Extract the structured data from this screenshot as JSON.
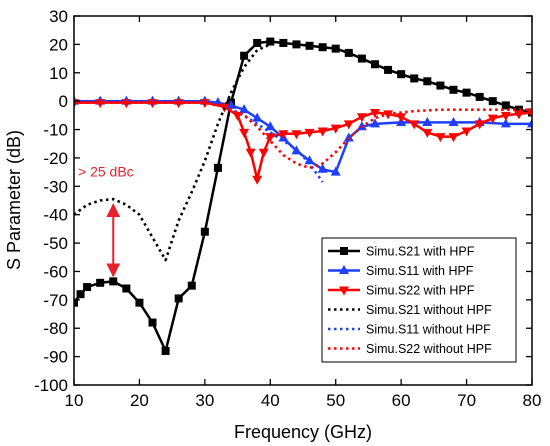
{
  "chart_data": {
    "type": "line",
    "title": "",
    "xlabel": "Frequency (GHz)",
    "ylabel": "S Parameter (dB)",
    "xlim": [
      10,
      80
    ],
    "ylim": [
      -100,
      30
    ],
    "x_ticks": [
      10,
      20,
      30,
      40,
      50,
      60,
      70,
      80
    ],
    "y_ticks": [
      30,
      20,
      10,
      0,
      -10,
      -20,
      -30,
      -40,
      -50,
      -60,
      -70,
      -80,
      -90,
      -100
    ],
    "grid": false,
    "legend_position": "lower-right",
    "series": [
      {
        "name": "Simu.S21 with HPF",
        "color": "#000000",
        "style": "solid",
        "marker": "square",
        "points": [
          [
            10,
            -71
          ],
          [
            11,
            -68
          ],
          [
            12,
            -65.5
          ],
          [
            14,
            -64
          ],
          [
            16,
            -63.5
          ],
          [
            18,
            -66
          ],
          [
            20,
            -71
          ],
          [
            22,
            -78
          ],
          [
            24,
            -88
          ],
          [
            26,
            -69.5
          ],
          [
            28,
            -65
          ],
          [
            30,
            -46
          ],
          [
            32,
            -23.5
          ],
          [
            34,
            -0.5
          ],
          [
            36,
            16
          ],
          [
            38,
            20.5
          ],
          [
            40,
            21
          ],
          [
            42,
            20.5
          ],
          [
            44,
            20
          ],
          [
            46,
            19.5
          ],
          [
            48,
            19
          ],
          [
            50,
            18.5
          ],
          [
            52,
            17
          ],
          [
            54,
            15
          ],
          [
            56,
            13
          ],
          [
            58,
            11
          ],
          [
            60,
            9.5
          ],
          [
            62,
            8
          ],
          [
            64,
            7
          ],
          [
            66,
            5.5
          ],
          [
            68,
            4
          ],
          [
            70,
            3
          ],
          [
            72,
            1.5
          ],
          [
            74,
            0
          ],
          [
            76,
            -1.5
          ],
          [
            78,
            -3
          ],
          [
            80,
            -4
          ]
        ]
      },
      {
        "name": "Simu.S11 with HPF",
        "color": "#1f3fff",
        "style": "solid",
        "marker": "triangle-up",
        "points": [
          [
            10,
            0
          ],
          [
            14,
            0
          ],
          [
            18,
            0
          ],
          [
            22,
            0
          ],
          [
            26,
            0
          ],
          [
            30,
            0
          ],
          [
            32,
            -0.5
          ],
          [
            34,
            -1.5
          ],
          [
            36,
            -3
          ],
          [
            38,
            -6
          ],
          [
            40,
            -9
          ],
          [
            42,
            -13
          ],
          [
            44,
            -17.5
          ],
          [
            46,
            -21
          ],
          [
            48,
            -24
          ],
          [
            50,
            -25
          ],
          [
            52,
            -13
          ],
          [
            54,
            -9
          ],
          [
            56,
            -8
          ],
          [
            60,
            -7.5
          ],
          [
            64,
            -7.5
          ],
          [
            68,
            -7.5
          ],
          [
            72,
            -7.5
          ],
          [
            76,
            -8
          ],
          [
            80,
            -8
          ]
        ]
      },
      {
        "name": "Simu.S22 with HPF",
        "color": "#ff0000",
        "style": "solid",
        "marker": "triangle-down",
        "points": [
          [
            10,
            -0.5
          ],
          [
            14,
            -0.5
          ],
          [
            18,
            -0.5
          ],
          [
            22,
            -0.5
          ],
          [
            26,
            -0.5
          ],
          [
            30,
            -0.5
          ],
          [
            33,
            -2
          ],
          [
            35,
            -5
          ],
          [
            36,
            -11
          ],
          [
            37,
            -18
          ],
          [
            38,
            -27.5
          ],
          [
            39,
            -18
          ],
          [
            40,
            -12.5
          ],
          [
            42,
            -11.5
          ],
          [
            44,
            -11.5
          ],
          [
            46,
            -11
          ],
          [
            48,
            -10.5
          ],
          [
            50,
            -9.5
          ],
          [
            52,
            -8
          ],
          [
            54,
            -5.5
          ],
          [
            56,
            -4
          ],
          [
            58,
            -4.5
          ],
          [
            60,
            -5.5
          ],
          [
            62,
            -8
          ],
          [
            64,
            -11
          ],
          [
            66,
            -12.5
          ],
          [
            68,
            -12.5
          ],
          [
            70,
            -10.5
          ],
          [
            72,
            -8
          ],
          [
            74,
            -6
          ],
          [
            76,
            -5
          ],
          [
            78,
            -4.5
          ],
          [
            80,
            -4
          ]
        ]
      },
      {
        "name": "Simu.S21 without HPF",
        "color": "#000000",
        "style": "dotted",
        "marker": "none",
        "points": [
          [
            10,
            -40
          ],
          [
            12,
            -36.5
          ],
          [
            14,
            -35
          ],
          [
            16,
            -34.5
          ],
          [
            18,
            -36.5
          ],
          [
            20,
            -40
          ],
          [
            22,
            -48
          ],
          [
            24,
            -56
          ],
          [
            26,
            -42
          ],
          [
            28,
            -32
          ],
          [
            30,
            -21
          ],
          [
            32,
            -8
          ],
          [
            34,
            3
          ],
          [
            36,
            12
          ],
          [
            38,
            18
          ],
          [
            40,
            20
          ]
        ]
      },
      {
        "name": "Simu.S11 without HPF",
        "color": "#1f3fff",
        "style": "dotted",
        "marker": "none",
        "points": [
          [
            10,
            0
          ],
          [
            20,
            0
          ],
          [
            30,
            0
          ],
          [
            32,
            -1
          ],
          [
            34,
            -3
          ],
          [
            36,
            -5
          ],
          [
            38,
            -8
          ],
          [
            40,
            -11
          ],
          [
            42,
            -14
          ],
          [
            44,
            -17
          ],
          [
            46,
            -22
          ],
          [
            48,
            -28.5
          ]
        ]
      },
      {
        "name": "Simu.S22 without HPF",
        "color": "#ff0000",
        "style": "dotted",
        "marker": "none",
        "points": [
          [
            10,
            -0.5
          ],
          [
            20,
            -0.5
          ],
          [
            30,
            -0.5
          ],
          [
            33,
            -2
          ],
          [
            36,
            -5
          ],
          [
            38,
            -9
          ],
          [
            40,
            -14
          ],
          [
            42,
            -19
          ],
          [
            44,
            -22
          ],
          [
            46,
            -23.5
          ],
          [
            48,
            -22
          ],
          [
            50,
            -18
          ],
          [
            52,
            -13
          ],
          [
            54,
            -9
          ],
          [
            56,
            -6
          ],
          [
            58,
            -4.5
          ],
          [
            62,
            -3.5
          ],
          [
            66,
            -3
          ],
          [
            70,
            -3
          ],
          [
            74,
            -3
          ],
          [
            78,
            -3
          ],
          [
            80,
            -3
          ]
        ]
      }
    ],
    "annotations": [
      {
        "text": "> 25 dBc",
        "color": "#e8202a",
        "arrow_from": [
          16,
          -35
        ],
        "arrow_to": [
          16,
          -63
        ]
      }
    ]
  }
}
